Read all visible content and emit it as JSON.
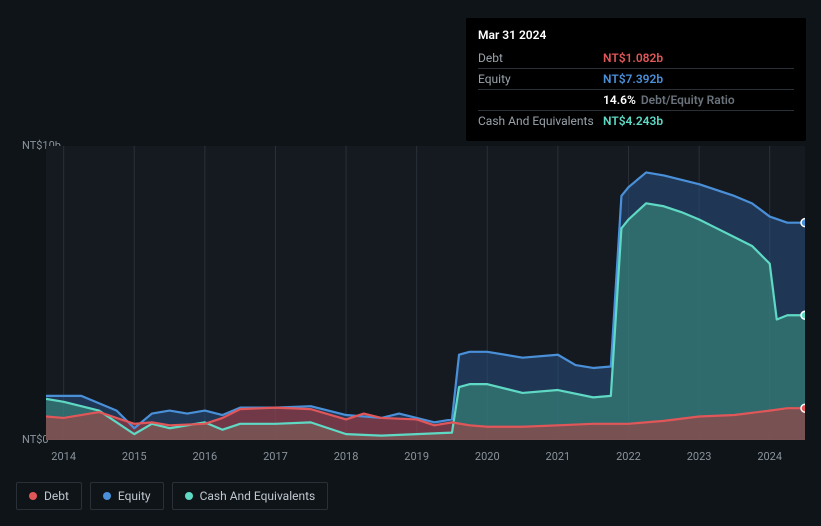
{
  "info": {
    "date": "Mar 31 2024",
    "rows": [
      {
        "label": "Debt",
        "value": "NT$1.082b",
        "color": "#e15759"
      },
      {
        "label": "Equity",
        "value": "NT$7.392b",
        "color": "#4a90d9"
      },
      {
        "label": "",
        "value": "14.6%",
        "suffix": "Debt/Equity Ratio",
        "color": "#ffffff"
      },
      {
        "label": "Cash And Equivalents",
        "value": "NT$4.243b",
        "color": "#5fd9c4"
      }
    ]
  },
  "chart": {
    "type": "area",
    "background_color": "#151a21",
    "grid_color": "#2a3038",
    "ylim": [
      0,
      10
    ],
    "ylabels": [
      {
        "text": "NT$10b",
        "v": 10
      },
      {
        "text": "NT$0",
        "v": 0
      }
    ],
    "xlabels": [
      "2014",
      "2015",
      "2016",
      "2017",
      "2018",
      "2019",
      "2020",
      "2021",
      "2022",
      "2023",
      "2024"
    ],
    "xrange": [
      2013.75,
      2024.5
    ],
    "series": [
      {
        "name": "Equity",
        "color": "#4a90d9",
        "fill": "rgba(40,80,130,0.55)",
        "points": [
          [
            2013.75,
            1.5
          ],
          [
            2014.25,
            1.5
          ],
          [
            2014.75,
            1.0
          ],
          [
            2015.0,
            0.4
          ],
          [
            2015.25,
            0.9
          ],
          [
            2015.5,
            1.0
          ],
          [
            2015.75,
            0.9
          ],
          [
            2016.0,
            1.0
          ],
          [
            2016.25,
            0.85
          ],
          [
            2016.5,
            1.1
          ],
          [
            2017.0,
            1.1
          ],
          [
            2017.5,
            1.15
          ],
          [
            2018.0,
            0.85
          ],
          [
            2018.5,
            0.75
          ],
          [
            2018.75,
            0.9
          ],
          [
            2019.0,
            0.75
          ],
          [
            2019.25,
            0.6
          ],
          [
            2019.5,
            0.7
          ],
          [
            2019.6,
            2.9
          ],
          [
            2019.75,
            3.0
          ],
          [
            2020.0,
            3.0
          ],
          [
            2020.5,
            2.8
          ],
          [
            2021.0,
            2.9
          ],
          [
            2021.25,
            2.55
          ],
          [
            2021.5,
            2.45
          ],
          [
            2021.75,
            2.5
          ],
          [
            2021.9,
            8.3
          ],
          [
            2022.0,
            8.6
          ],
          [
            2022.25,
            9.1
          ],
          [
            2022.5,
            9.0
          ],
          [
            2022.75,
            8.85
          ],
          [
            2023.0,
            8.7
          ],
          [
            2023.25,
            8.5
          ],
          [
            2023.5,
            8.3
          ],
          [
            2023.75,
            8.05
          ],
          [
            2024.0,
            7.6
          ],
          [
            2024.25,
            7.392
          ],
          [
            2024.5,
            7.392
          ]
        ]
      },
      {
        "name": "Cash And Equivalents",
        "color": "#5fd9c4",
        "fill": "rgba(60,150,130,0.55)",
        "points": [
          [
            2013.75,
            1.4
          ],
          [
            2014.0,
            1.3
          ],
          [
            2014.5,
            1.0
          ],
          [
            2015.0,
            0.2
          ],
          [
            2015.25,
            0.55
          ],
          [
            2015.5,
            0.4
          ],
          [
            2016.0,
            0.6
          ],
          [
            2016.25,
            0.35
          ],
          [
            2016.5,
            0.55
          ],
          [
            2017.0,
            0.55
          ],
          [
            2017.5,
            0.6
          ],
          [
            2018.0,
            0.2
          ],
          [
            2018.5,
            0.15
          ],
          [
            2019.0,
            0.2
          ],
          [
            2019.5,
            0.25
          ],
          [
            2019.6,
            1.8
          ],
          [
            2019.75,
            1.9
          ],
          [
            2020.0,
            1.9
          ],
          [
            2020.5,
            1.6
          ],
          [
            2021.0,
            1.7
          ],
          [
            2021.5,
            1.45
          ],
          [
            2021.75,
            1.5
          ],
          [
            2021.9,
            7.2
          ],
          [
            2022.0,
            7.5
          ],
          [
            2022.25,
            8.05
          ],
          [
            2022.5,
            7.95
          ],
          [
            2022.75,
            7.75
          ],
          [
            2023.0,
            7.5
          ],
          [
            2023.25,
            7.2
          ],
          [
            2023.5,
            6.9
          ],
          [
            2023.75,
            6.6
          ],
          [
            2024.0,
            6.0
          ],
          [
            2024.1,
            4.1
          ],
          [
            2024.25,
            4.243
          ],
          [
            2024.5,
            4.243
          ]
        ]
      },
      {
        "name": "Debt",
        "color": "#e15759",
        "fill": "rgba(180,60,60,0.55)",
        "points": [
          [
            2013.75,
            0.8
          ],
          [
            2014.0,
            0.75
          ],
          [
            2014.5,
            0.95
          ],
          [
            2015.0,
            0.55
          ],
          [
            2015.25,
            0.6
          ],
          [
            2015.5,
            0.5
          ],
          [
            2016.0,
            0.55
          ],
          [
            2016.25,
            0.75
          ],
          [
            2016.5,
            1.05
          ],
          [
            2017.0,
            1.1
          ],
          [
            2017.5,
            1.05
          ],
          [
            2018.0,
            0.7
          ],
          [
            2018.25,
            0.9
          ],
          [
            2018.5,
            0.75
          ],
          [
            2019.0,
            0.7
          ],
          [
            2019.25,
            0.5
          ],
          [
            2019.5,
            0.6
          ],
          [
            2019.75,
            0.5
          ],
          [
            2020.0,
            0.45
          ],
          [
            2020.5,
            0.45
          ],
          [
            2021.0,
            0.5
          ],
          [
            2021.5,
            0.55
          ],
          [
            2022.0,
            0.55
          ],
          [
            2022.5,
            0.65
          ],
          [
            2023.0,
            0.8
          ],
          [
            2023.5,
            0.85
          ],
          [
            2024.0,
            1.0
          ],
          [
            2024.25,
            1.082
          ],
          [
            2024.5,
            1.082
          ]
        ]
      }
    ],
    "markers": [
      {
        "x": 2024.5,
        "y": 7.392,
        "color": "#4a90d9"
      },
      {
        "x": 2024.5,
        "y": 4.243,
        "color": "#5fd9c4"
      },
      {
        "x": 2024.5,
        "y": 1.082,
        "color": "#e15759"
      }
    ],
    "line_width": 2.2
  },
  "legend": [
    {
      "label": "Debt",
      "color": "#e15759"
    },
    {
      "label": "Equity",
      "color": "#4a90d9"
    },
    {
      "label": "Cash And Equivalents",
      "color": "#5fd9c4"
    }
  ]
}
